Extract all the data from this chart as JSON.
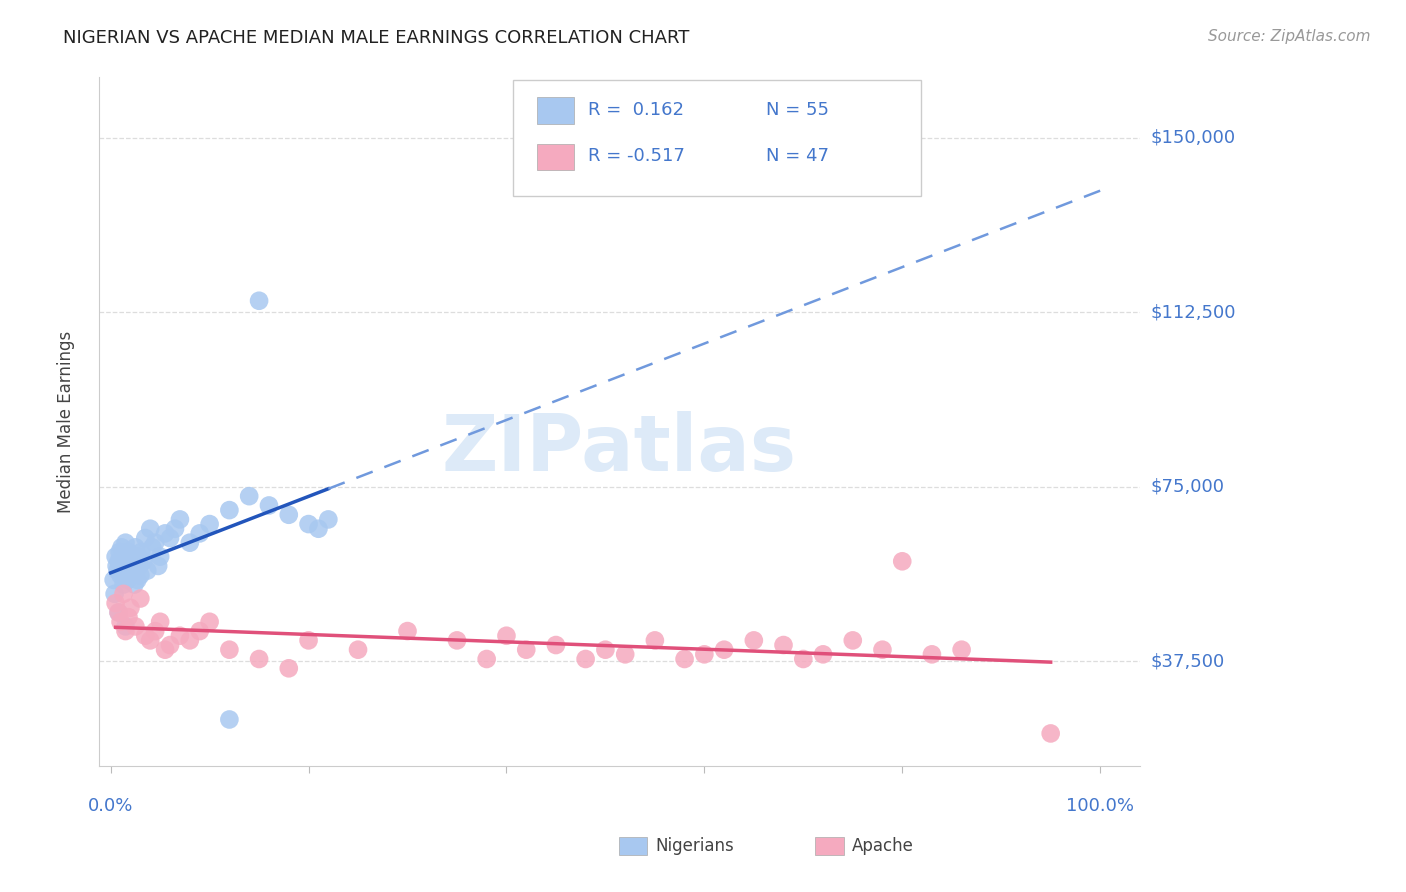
{
  "title": "NIGERIAN VS APACHE MEDIAN MALE EARNINGS CORRELATION CHART",
  "source": "Source: ZipAtlas.com",
  "ylabel": "Median Male Earnings",
  "ytick_labels": [
    "$37,500",
    "$75,000",
    "$112,500",
    "$150,000"
  ],
  "ytick_values": [
    37500,
    75000,
    112500,
    150000
  ],
  "ymin": 15000,
  "ymax": 163000,
  "xmin": 0.0,
  "xmax": 1.0,
  "nigerian_R": "0.162",
  "nigerian_N": "55",
  "apache_R": "-0.517",
  "apache_N": "47",
  "nigerian_color": "#a8c8f0",
  "apache_color": "#f5aabf",
  "nigerian_line_color": "#2255bb",
  "apache_line_color": "#e0507a",
  "nigerian_dash_color": "#7099dd",
  "title_color": "#222222",
  "source_color": "#999999",
  "axis_label_color": "#444444",
  "right_tick_color": "#4477cc",
  "bottom_tick_color": "#4477cc",
  "grid_color": "#dddddd",
  "legend_text_color": "#4477cc",
  "legend_border_color": "#cccccc",
  "watermark_color": "#ddeaf8",
  "background": "#ffffff",
  "nigerian_x": [
    0.003,
    0.005,
    0.006,
    0.007,
    0.008,
    0.009,
    0.01,
    0.011,
    0.012,
    0.013,
    0.014,
    0.015,
    0.016,
    0.017,
    0.018,
    0.019,
    0.02,
    0.021,
    0.022,
    0.023,
    0.024,
    0.025,
    0.026,
    0.027,
    0.028,
    0.029,
    0.03,
    0.031,
    0.033,
    0.035,
    0.037,
    0.04,
    0.042,
    0.045,
    0.048,
    0.05,
    0.055,
    0.06,
    0.065,
    0.07,
    0.08,
    0.09,
    0.1,
    0.12,
    0.14,
    0.16,
    0.18,
    0.2,
    0.21,
    0.22,
    0.004,
    0.008,
    0.015,
    0.15,
    0.12
  ],
  "nigerian_y": [
    55000,
    60000,
    58000,
    57000,
    59000,
    61000,
    56000,
    62000,
    58000,
    54000,
    57000,
    63000,
    59000,
    55000,
    61000,
    57000,
    58000,
    60000,
    56000,
    59000,
    54000,
    62000,
    57000,
    55000,
    60000,
    58000,
    56000,
    61000,
    59000,
    64000,
    57000,
    66000,
    62000,
    63000,
    58000,
    60000,
    65000,
    64000,
    66000,
    68000,
    63000,
    65000,
    67000,
    70000,
    73000,
    71000,
    69000,
    67000,
    66000,
    68000,
    52000,
    48000,
    45000,
    115000,
    25000
  ],
  "apache_x": [
    0.005,
    0.008,
    0.01,
    0.013,
    0.015,
    0.018,
    0.02,
    0.025,
    0.03,
    0.035,
    0.04,
    0.045,
    0.05,
    0.055,
    0.06,
    0.07,
    0.08,
    0.09,
    0.1,
    0.12,
    0.15,
    0.18,
    0.2,
    0.25,
    0.3,
    0.35,
    0.38,
    0.4,
    0.42,
    0.45,
    0.48,
    0.5,
    0.52,
    0.55,
    0.58,
    0.6,
    0.62,
    0.65,
    0.68,
    0.7,
    0.72,
    0.75,
    0.78,
    0.8,
    0.83,
    0.86,
    0.95
  ],
  "apache_y": [
    50000,
    48000,
    46000,
    52000,
    44000,
    47000,
    49000,
    45000,
    51000,
    43000,
    42000,
    44000,
    46000,
    40000,
    41000,
    43000,
    42000,
    44000,
    46000,
    40000,
    38000,
    36000,
    42000,
    40000,
    44000,
    42000,
    38000,
    43000,
    40000,
    41000,
    38000,
    40000,
    39000,
    42000,
    38000,
    39000,
    40000,
    42000,
    41000,
    38000,
    39000,
    42000,
    40000,
    59000,
    39000,
    40000,
    22000
  ]
}
